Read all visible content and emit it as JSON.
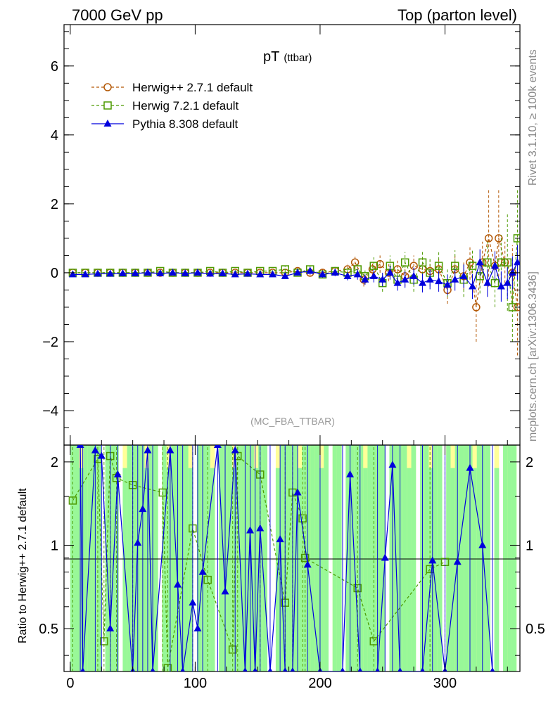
{
  "header": {
    "left": "7000 GeV pp",
    "right": "Top (parton level)"
  },
  "side_labels": {
    "rivet": "Rivet 3.1.10, ≥ 100k events",
    "mcplots": "mcplots.cern.ch [arXiv:1306.3436]"
  },
  "chart_data": {
    "type": "line",
    "title": "pT",
    "title_sub": "(ttbar)",
    "analysis_label": "(MC_FBA_TTBAR)",
    "ylabel_ratio": "Ratio to Herwig++ 2.7.1 default",
    "xlim": [
      -5,
      360
    ],
    "ylim_main": [
      -5,
      7.2
    ],
    "ylim_ratio": [
      0.35,
      2.3
    ],
    "x_ticks": [
      0,
      100,
      200,
      300
    ],
    "y_ticks_main": [
      -4,
      -2,
      0,
      2,
      4,
      6
    ],
    "y_ticks_ratio": [
      0.5,
      1,
      2
    ],
    "legend": {
      "placement": "top-left"
    },
    "colors": {
      "herwigpp": "#b35806",
      "herwig7": "#4d9a00",
      "pythia": "#0000dd",
      "band_green": "#98f898",
      "band_yellow": "#ffff99"
    },
    "series": [
      {
        "name": "Herwig++ 2.7.1 default",
        "key": "herwigpp",
        "points": [
          [
            2,
            0
          ],
          [
            12,
            0
          ],
          [
            22,
            0
          ],
          [
            32,
            0
          ],
          [
            42,
            0
          ],
          [
            52,
            0
          ],
          [
            62,
            0
          ],
          [
            72,
            0
          ],
          [
            82,
            0
          ],
          [
            92,
            0
          ],
          [
            102,
            0
          ],
          [
            112,
            0
          ],
          [
            122,
            0
          ],
          [
            132,
            0
          ],
          [
            142,
            0
          ],
          [
            152,
            0
          ],
          [
            162,
            0
          ],
          [
            172,
            0
          ],
          [
            182,
            0.05
          ],
          [
            192,
            0
          ],
          [
            202,
            0
          ],
          [
            212,
            0.05
          ],
          [
            222,
            0.1
          ],
          [
            228,
            0.3
          ],
          [
            235,
            -0.2
          ],
          [
            242,
            0.1
          ],
          [
            248,
            0.25
          ],
          [
            255,
            0
          ],
          [
            262,
            0.1
          ],
          [
            268,
            -0.1
          ],
          [
            275,
            0.2
          ],
          [
            282,
            0.1
          ],
          [
            288,
            0.05
          ],
          [
            295,
            0.1
          ],
          [
            302,
            -0.5
          ],
          [
            308,
            0.1
          ],
          [
            315,
            -0.1
          ],
          [
            320,
            0.3
          ],
          [
            325,
            -1
          ],
          [
            330,
            0.3
          ],
          [
            335,
            1
          ],
          [
            340,
            0.2
          ],
          [
            343,
            1
          ],
          [
            348,
            0.3
          ],
          [
            354,
            0
          ],
          [
            358,
            -1
          ]
        ],
        "errors": [
          0.05,
          0.05,
          0.05,
          0.05,
          0.05,
          0.05,
          0.05,
          0.05,
          0.05,
          0.05,
          0.05,
          0.05,
          0.05,
          0.05,
          0.05,
          0.05,
          0.05,
          0.05,
          0.08,
          0.08,
          0.1,
          0.1,
          0.15,
          0.2,
          0.2,
          0.2,
          0.25,
          0.25,
          0.25,
          0.3,
          0.3,
          0.3,
          0.3,
          0.35,
          0.4,
          0.4,
          0.4,
          0.5,
          1,
          0.6,
          1.4,
          0.5,
          1.4,
          0.6,
          0.8,
          1.4
        ]
      },
      {
        "name": "Herwig 7.2.1 default",
        "key": "herwig7",
        "points": [
          [
            2,
            0
          ],
          [
            12,
            0
          ],
          [
            22,
            0
          ],
          [
            32,
            0
          ],
          [
            42,
            0
          ],
          [
            52,
            0
          ],
          [
            62,
            0
          ],
          [
            72,
            0.05
          ],
          [
            82,
            0
          ],
          [
            92,
            0
          ],
          [
            102,
            0
          ],
          [
            112,
            0.05
          ],
          [
            122,
            0
          ],
          [
            132,
            0.05
          ],
          [
            142,
            0
          ],
          [
            152,
            0.05
          ],
          [
            162,
            0.05
          ],
          [
            172,
            0.1
          ],
          [
            182,
            0
          ],
          [
            192,
            0.1
          ],
          [
            202,
            -0.05
          ],
          [
            212,
            0.05
          ],
          [
            222,
            0
          ],
          [
            230,
            0.1
          ],
          [
            236,
            -0.1
          ],
          [
            243,
            0.2
          ],
          [
            250,
            -0.3
          ],
          [
            256,
            0.2
          ],
          [
            262,
            -0.2
          ],
          [
            268,
            0.3
          ],
          [
            275,
            -0.2
          ],
          [
            282,
            0.3
          ],
          [
            288,
            0
          ],
          [
            295,
            0.2
          ],
          [
            302,
            -0.3
          ],
          [
            308,
            0.2
          ],
          [
            315,
            -0.2
          ],
          [
            322,
            0.2
          ],
          [
            328,
            -0.1
          ],
          [
            334,
            0.3
          ],
          [
            340,
            -0.3
          ],
          [
            345,
            0.3
          ],
          [
            350,
            0.3
          ],
          [
            354,
            -1
          ],
          [
            358,
            1
          ]
        ],
        "errors": [
          0.05,
          0.05,
          0.05,
          0.05,
          0.05,
          0.05,
          0.05,
          0.05,
          0.05,
          0.05,
          0.05,
          0.05,
          0.05,
          0.05,
          0.05,
          0.05,
          0.06,
          0.08,
          0.08,
          0.1,
          0.1,
          0.12,
          0.15,
          0.2,
          0.2,
          0.25,
          0.25,
          0.3,
          0.3,
          0.3,
          0.35,
          0.35,
          0.4,
          0.4,
          0.4,
          0.45,
          0.5,
          0.5,
          0.5,
          0.6,
          0.7,
          0.8,
          1.4,
          1,
          1.4
        ]
      },
      {
        "name": "Pythia 8.308 default",
        "key": "pythia",
        "points": [
          [
            2,
            -0.05
          ],
          [
            12,
            -0.05
          ],
          [
            22,
            -0.03
          ],
          [
            32,
            -0.03
          ],
          [
            42,
            -0.02
          ],
          [
            52,
            -0.02
          ],
          [
            62,
            0
          ],
          [
            72,
            -0.02
          ],
          [
            82,
            0
          ],
          [
            92,
            -0.02
          ],
          [
            102,
            0
          ],
          [
            112,
            -0.03
          ],
          [
            122,
            -0.02
          ],
          [
            132,
            -0.05
          ],
          [
            142,
            -0.03
          ],
          [
            152,
            -0.05
          ],
          [
            162,
            -0.05
          ],
          [
            172,
            -0.1
          ],
          [
            182,
            0
          ],
          [
            192,
            0.05
          ],
          [
            202,
            -0.05
          ],
          [
            212,
            0
          ],
          [
            222,
            -0.1
          ],
          [
            230,
            -0.05
          ],
          [
            236,
            -0.2
          ],
          [
            243,
            -0.1
          ],
          [
            250,
            -0.2
          ],
          [
            256,
            0
          ],
          [
            262,
            -0.3
          ],
          [
            268,
            -0.2
          ],
          [
            275,
            -0.1
          ],
          [
            282,
            -0.3
          ],
          [
            288,
            -0.2
          ],
          [
            295,
            -0.25
          ],
          [
            302,
            -0.35
          ],
          [
            308,
            -0.2
          ],
          [
            315,
            -0.1
          ],
          [
            322,
            -0.4
          ],
          [
            328,
            0.3
          ],
          [
            334,
            -0.3
          ],
          [
            340,
            0.2
          ],
          [
            345,
            -0.4
          ],
          [
            350,
            -0.3
          ],
          [
            354,
            0
          ],
          [
            358,
            0.3
          ]
        ],
        "errors": [
          0.03,
          0.03,
          0.03,
          0.03,
          0.03,
          0.03,
          0.03,
          0.03,
          0.03,
          0.03,
          0.03,
          0.03,
          0.04,
          0.04,
          0.04,
          0.05,
          0.05,
          0.06,
          0.07,
          0.08,
          0.09,
          0.1,
          0.12,
          0.15,
          0.15,
          0.18,
          0.2,
          0.2,
          0.22,
          0.24,
          0.25,
          0.27,
          0.28,
          0.3,
          0.3,
          0.32,
          0.34,
          0.36,
          0.38,
          0.4,
          0.42,
          0.44,
          0.46,
          0.48,
          0.5
        ]
      }
    ],
    "ratio_series": [
      {
        "key": "herwig7",
        "points": [
          [
            2,
            1.45
          ],
          [
            22,
            2.05
          ],
          [
            27,
            0.45
          ],
          [
            32,
            2.1
          ],
          [
            37,
            1.75
          ],
          [
            50,
            1.65
          ],
          [
            74,
            1.55
          ],
          [
            78,
            0.36
          ],
          [
            98,
            1.15
          ],
          [
            110,
            0.75
          ],
          [
            130,
            0.42
          ],
          [
            134,
            2.1
          ],
          [
            152,
            1.8
          ],
          [
            172,
            0.62
          ],
          [
            178,
            1.55
          ],
          [
            186,
            1.25
          ],
          [
            188,
            0.9
          ],
          [
            230,
            0.7
          ],
          [
            243,
            0.45
          ],
          [
            288,
            0.82
          ],
          [
            300,
            0.87
          ]
        ]
      },
      {
        "key": "pythia",
        "points": [
          [
            8,
            2.3
          ],
          [
            10,
            0.35
          ],
          [
            20,
            2.2
          ],
          [
            25,
            2.1
          ],
          [
            32,
            0.5
          ],
          [
            38,
            1.8
          ],
          [
            50,
            0.35
          ],
          [
            54,
            1.02
          ],
          [
            58,
            1.35
          ],
          [
            62,
            2.2
          ],
          [
            66,
            0.35
          ],
          [
            80,
            2.2
          ],
          [
            86,
            0.72
          ],
          [
            90,
            0.35
          ],
          [
            98,
            0.62
          ],
          [
            102,
            0.5
          ],
          [
            106,
            0.8
          ],
          [
            118,
            2.3
          ],
          [
            124,
            0.68
          ],
          [
            132,
            2.2
          ],
          [
            140,
            0.35
          ],
          [
            144,
            1.13
          ],
          [
            148,
            0.35
          ],
          [
            152,
            1.15
          ],
          [
            160,
            0.35
          ],
          [
            168,
            1.05
          ],
          [
            172,
            0.35
          ],
          [
            178,
            0.35
          ],
          [
            182,
            1.55
          ],
          [
            190,
            0.85
          ],
          [
            200,
            0.35
          ],
          [
            218,
            0.35
          ],
          [
            224,
            1.8
          ],
          [
            232,
            0.35
          ],
          [
            246,
            0.35
          ],
          [
            252,
            0.9
          ],
          [
            258,
            1.95
          ],
          [
            264,
            0.35
          ],
          [
            282,
            0.35
          ],
          [
            290,
            0.88
          ],
          [
            300,
            0.35
          ],
          [
            310,
            0.87
          ],
          [
            320,
            1.9
          ],
          [
            330,
            1.0
          ],
          [
            338,
            0.35
          ]
        ]
      }
    ]
  }
}
